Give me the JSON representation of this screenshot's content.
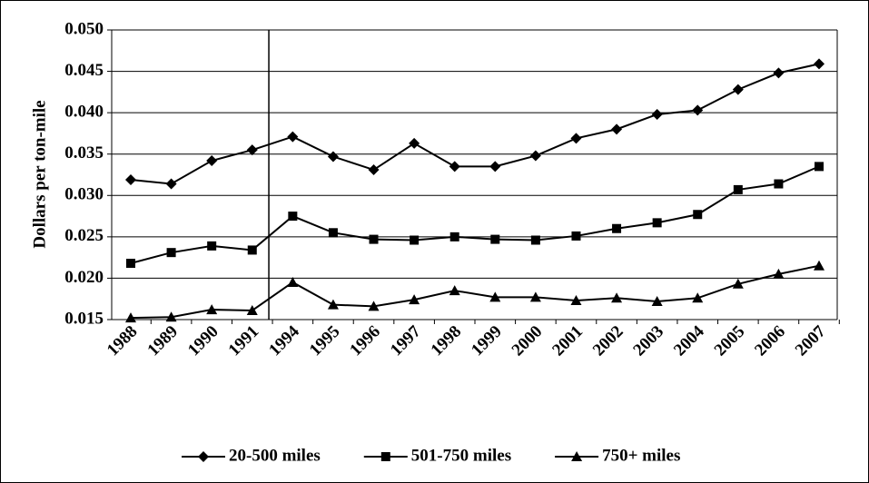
{
  "chart_data": {
    "type": "line",
    "y_label": "Dollars per ton-mile",
    "categories": [
      "1988",
      "1989",
      "1990",
      "1991",
      "1994",
      "1995",
      "1996",
      "1997",
      "1998",
      "1999",
      "2000",
      "2001",
      "2002",
      "2003",
      "2004",
      "2005",
      "2006",
      "2007"
    ],
    "series": [
      {
        "name": "20-500 miles",
        "color": "#000000",
        "marker": "diamond",
        "values": [
          0.0319,
          0.0314,
          0.0342,
          0.0355,
          0.0371,
          0.0347,
          0.0331,
          0.0363,
          0.0335,
          0.0335,
          0.0348,
          0.0369,
          0.038,
          0.0398,
          0.0403,
          0.0428,
          0.0448,
          0.0459
        ]
      },
      {
        "name": "501-750 miles",
        "color": "#000000",
        "marker": "square",
        "values": [
          0.0218,
          0.0231,
          0.0239,
          0.0234,
          0.0275,
          0.0255,
          0.0247,
          0.0246,
          0.025,
          0.0247,
          0.0246,
          0.0251,
          0.026,
          0.0267,
          0.0277,
          0.0307,
          0.0314,
          0.0335
        ]
      },
      {
        "name": "750+ miles",
        "color": "#000000",
        "marker": "triangle",
        "values": [
          0.0152,
          0.0153,
          0.0162,
          0.0161,
          0.0195,
          0.0168,
          0.0166,
          0.0174,
          0.0185,
          0.0177,
          0.0177,
          0.0173,
          0.0176,
          0.0172,
          0.0176,
          0.0193,
          0.0205,
          0.0215
        ]
      }
    ],
    "ylim": [
      0.015,
      0.05
    ],
    "yticks": [
      0.015,
      {
        "value": 0.02,
        "label": "0.020"
      },
      0.025,
      {
        "value": 0.03,
        "label": "0.030"
      },
      0.035,
      {
        "value": 0.04,
        "label": "0.040"
      },
      0.045,
      {
        "value": 0.05,
        "label": "0.050"
      }
    ],
    "grid": true,
    "legend": "bottom"
  }
}
